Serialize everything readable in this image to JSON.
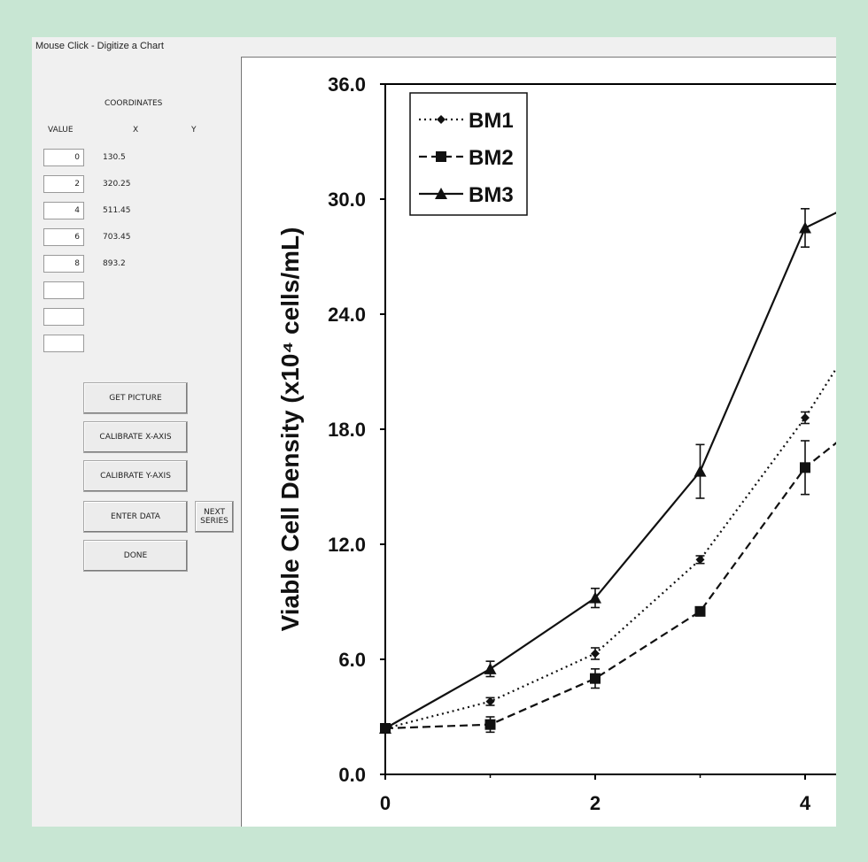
{
  "window": {
    "title": "Mouse Click - Digitize a Chart"
  },
  "coordinates": {
    "heading": "COORDINATES",
    "col_value": "VALUE",
    "col_x": "X",
    "col_y": "Y",
    "rows": [
      {
        "value": "0",
        "x": "130.5"
      },
      {
        "value": "2",
        "x": "320.25"
      },
      {
        "value": "4",
        "x": "511.45"
      },
      {
        "value": "6",
        "x": "703.45"
      },
      {
        "value": "8",
        "x": "893.2"
      },
      {
        "value": "",
        "x": ""
      },
      {
        "value": "",
        "x": ""
      },
      {
        "value": "",
        "x": ""
      }
    ]
  },
  "buttons": {
    "get_picture": "GET PICTURE",
    "calibrate_x": "CALIBRATE X-AXIS",
    "calibrate_y": "CALIBRATE Y-AXIS",
    "enter_data": "ENTER DATA",
    "next_series": "NEXT SERIES",
    "done": "DONE"
  },
  "chart_data": {
    "type": "line",
    "ylabel": "Viable Cell Density (x10⁴ cells/mL)",
    "xlabel": "",
    "ylim": [
      0,
      36
    ],
    "y_ticks": [
      "0.0",
      "6.0",
      "12.0",
      "18.0",
      "24.0",
      "30.0",
      "36.0"
    ],
    "x_ticks": [
      "0",
      "2",
      "4"
    ],
    "legend_position": "top-left",
    "series": [
      {
        "name": "BM1",
        "style": "dotted",
        "marker": "diamond",
        "x": [
          0,
          1,
          2,
          3,
          4,
          4.3
        ],
        "y": [
          2.4,
          3.8,
          6.3,
          11.2,
          18.6,
          21.2
        ],
        "err": [
          0.2,
          0.2,
          0.3,
          0.2,
          0.3,
          0
        ]
      },
      {
        "name": "BM2",
        "style": "dashed",
        "marker": "square",
        "x": [
          0,
          1,
          2,
          3,
          4,
          4.3
        ],
        "y": [
          2.4,
          2.6,
          5.0,
          8.5,
          16.0,
          17.3
        ],
        "err": [
          0.2,
          0.4,
          0.5,
          0.2,
          1.4,
          0
        ]
      },
      {
        "name": "BM3",
        "style": "solid",
        "marker": "triangle",
        "x": [
          0,
          1,
          2,
          3,
          4,
          4.3
        ],
        "y": [
          2.4,
          5.5,
          9.2,
          15.8,
          28.5,
          29.3
        ],
        "err": [
          0.2,
          0.4,
          0.5,
          1.4,
          1.0,
          0
        ]
      }
    ]
  }
}
